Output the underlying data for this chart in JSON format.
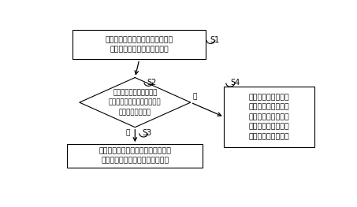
{
  "bg_color": "#ffffff",
  "s1_label": "S1",
  "s2_label": "S2",
  "s3_label": "S3",
  "s4_label": "S4",
  "box1_text": "当检测到所述油田配电网发生故障\n时，查找所述故障点的位置；",
  "diamond_text": "通过打开断路器将故障点\n的线路断开，并判断故障是否\n为非永久性故障？",
  "box3_text": "将打开的断路器关闭，并将与母线断\n开的线路中的抗油机组分批启动；",
  "box4_text": "将与母线断开的线路\n上与打开断路器相邻\n的抗油机组的发电机\n启动，为与母线断开\n的线路提供有功功率",
  "yes_label": "是",
  "no_label": "否"
}
